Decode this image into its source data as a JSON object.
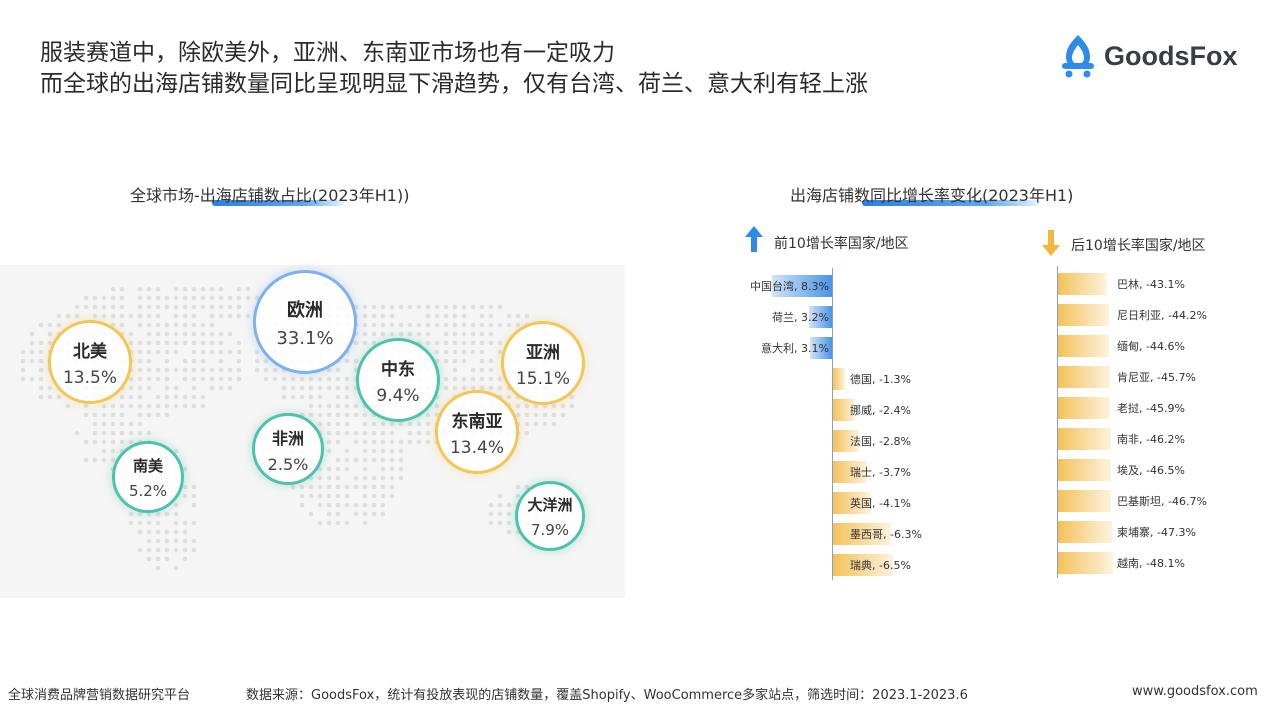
{
  "header": {
    "line1": "服装赛道中，除欧美外，亚洲、东南亚市场也有一定吸力",
    "line2": "而全球的出海店铺数量同比呈现明显下滑趋势，仅有台湾、荷兰、意大利有轻上涨"
  },
  "brand": {
    "name": "GoodsFox",
    "icon": "fox-cart-logo-icon"
  },
  "left_section": {
    "title": "全球市场-出海店铺数占比(2023年H1))"
  },
  "right_section": {
    "title": "出海店铺数同比增长率变化(2023年H1)",
    "top_legend": "前10增长率国家/地区",
    "bottom_legend": "后10增长率国家/地区",
    "top_legend_icon": "arrow-up-icon",
    "bottom_legend_icon": "arrow-down-icon"
  },
  "colors": {
    "blue_bar": "#4a93e6",
    "gold_bar": "#f4c25a",
    "accent_blue": "#2f7fe0"
  },
  "chart_data": [
    {
      "type": "bubble-map",
      "title": "全球市场-出海店铺数占比(2023年H1))",
      "unit": "%",
      "regions": [
        {
          "name": "欧洲",
          "value": 33.1,
          "label": "33.1%",
          "color": "#7fb2ea"
        },
        {
          "name": "亚洲",
          "value": 15.1,
          "label": "15.1%",
          "color": "#f0c85a"
        },
        {
          "name": "北美",
          "value": 13.5,
          "label": "13.5%",
          "color": "#f0c85a"
        },
        {
          "name": "东南亚",
          "value": 13.4,
          "label": "13.4%",
          "color": "#f0c85a"
        },
        {
          "name": "中东",
          "value": 9.4,
          "label": "9.4%",
          "color": "#4fc2ad"
        },
        {
          "name": "大洋洲",
          "value": 7.9,
          "label": "7.9%",
          "color": "#4fc2ad"
        },
        {
          "name": "南美",
          "value": 5.2,
          "label": "5.2%",
          "color": "#4fc2ad"
        },
        {
          "name": "非洲",
          "value": 2.5,
          "label": "2.5%",
          "color": "#4fc2ad"
        }
      ]
    },
    {
      "type": "bar",
      "orientation": "horizontal",
      "title": "前10增长率国家/地区",
      "unit": "%",
      "categories": [
        "中国台湾",
        "荷兰",
        "意大利",
        "德国",
        "挪威",
        "法国",
        "瑞士",
        "英国",
        "墨西哥",
        "瑞典"
      ],
      "values": [
        8.3,
        3.2,
        3.1,
        -1.3,
        -2.4,
        -2.8,
        -3.7,
        -4.1,
        -6.3,
        -6.5
      ],
      "labels": [
        "中国台湾, 8.3%",
        "荷兰, 3.2%",
        "意大利, 3.1%",
        "德国, -1.3%",
        "挪威, -2.4%",
        "法国, -2.8%",
        "瑞士, -3.7%",
        "英国, -4.1%",
        "墨西哥, -6.3%",
        "瑞典, -6.5%"
      ]
    },
    {
      "type": "bar",
      "orientation": "horizontal",
      "title": "后10增长率国家/地区",
      "unit": "%",
      "categories": [
        "巴林",
        "尼日利亚",
        "缅甸",
        "肯尼亚",
        "老挝",
        "南非",
        "埃及",
        "巴基斯坦",
        "柬埔寨",
        "越南"
      ],
      "values": [
        -43.1,
        -44.2,
        -44.6,
        -45.7,
        -45.9,
        -46.2,
        -46.5,
        -46.7,
        -47.3,
        -48.1
      ],
      "labels": [
        "巴林, -43.1%",
        "尼日利亚, -44.2%",
        "缅甸, -44.6%",
        "肯尼亚, -45.7%",
        "老挝, -45.9%",
        "南非, -46.2%",
        "埃及, -46.5%",
        "巴基斯坦, -46.7%",
        "柬埔寨, -47.3%",
        "越南, -48.1%"
      ]
    }
  ],
  "footer": {
    "left": "全球消费品牌营销数据研究平台",
    "center": "数据来源：GoodsFox，统计有投放表现的店铺数量，覆盖Shopify、WooCommerce多家站点，筛选时间：2023.1-2023.6",
    "right": "www.goodsfox.com"
  }
}
